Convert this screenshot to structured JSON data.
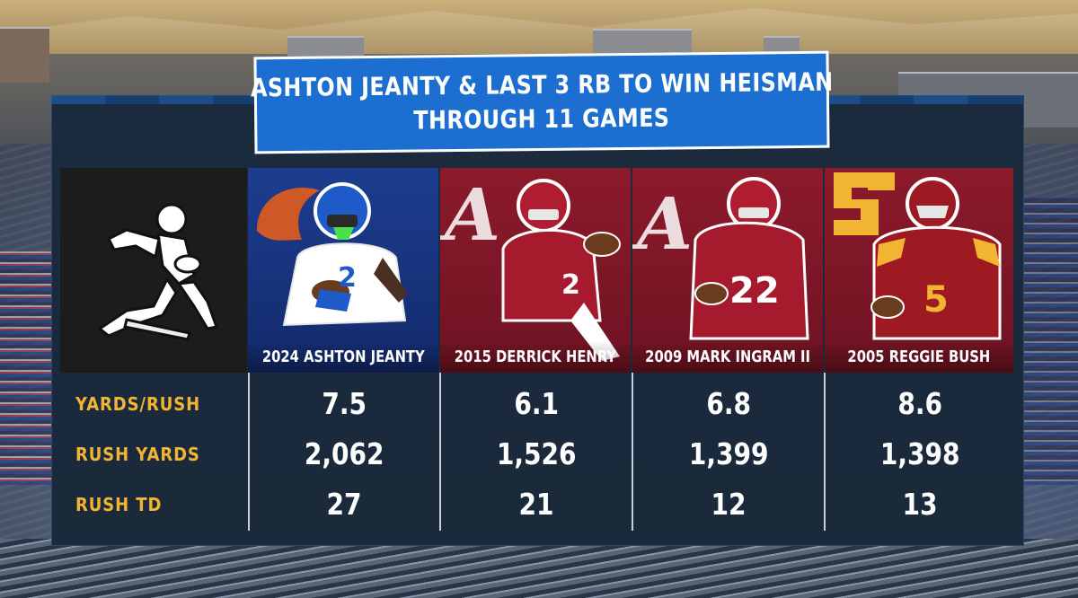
{
  "title": {
    "line1": "ASHTON JEANTY & LAST 3 RB TO WIN HEISMAN",
    "line2": "THROUGH 11 GAMES"
  },
  "logo_icon": "heisman-trophy-icon",
  "players": [
    {
      "caption": "2024 ASHTON JEANTY",
      "team_logo": "bronco-logo-icon",
      "jersey": "2",
      "colors": {
        "bg": "#1d3d8f",
        "jersey": "#ffffff",
        "helmet": "#1e5ac8"
      }
    },
    {
      "caption": "2015 DERRICK HENRY",
      "team_logo": "script-a-logo-icon",
      "jersey": "2",
      "colors": {
        "bg": "#8c1a2b",
        "jersey": "#a61a2e",
        "helmet": "#a61a2e"
      }
    },
    {
      "caption": "2009 MARK INGRAM II",
      "team_logo": "script-a-logo-icon",
      "jersey": "22",
      "colors": {
        "bg": "#8c1a2b",
        "jersey": "#a61a2e",
        "helmet": "#a61a2e"
      }
    },
    {
      "caption": "2005 REGGIE BUSH",
      "team_logo": "sc-logo-icon",
      "jersey": "5",
      "colors": {
        "bg": "#8c1a2b",
        "jersey": "#9d1a22",
        "helmet": "#9d1a22"
      }
    }
  ],
  "stats": {
    "labels": [
      "YARDS/RUSH",
      "RUSH YARDS",
      "RUSH TD"
    ],
    "rows": [
      [
        "7.5",
        "6.1",
        "6.8",
        "8.6"
      ],
      [
        "2,062",
        "1,526",
        "1,399",
        "1,398"
      ],
      [
        "27",
        "21",
        "12",
        "13"
      ]
    ]
  },
  "colors": {
    "title_bg": "#1c6fd0",
    "label": "#f2b531",
    "value": "#ffffff",
    "board": "#1b2b3d"
  }
}
